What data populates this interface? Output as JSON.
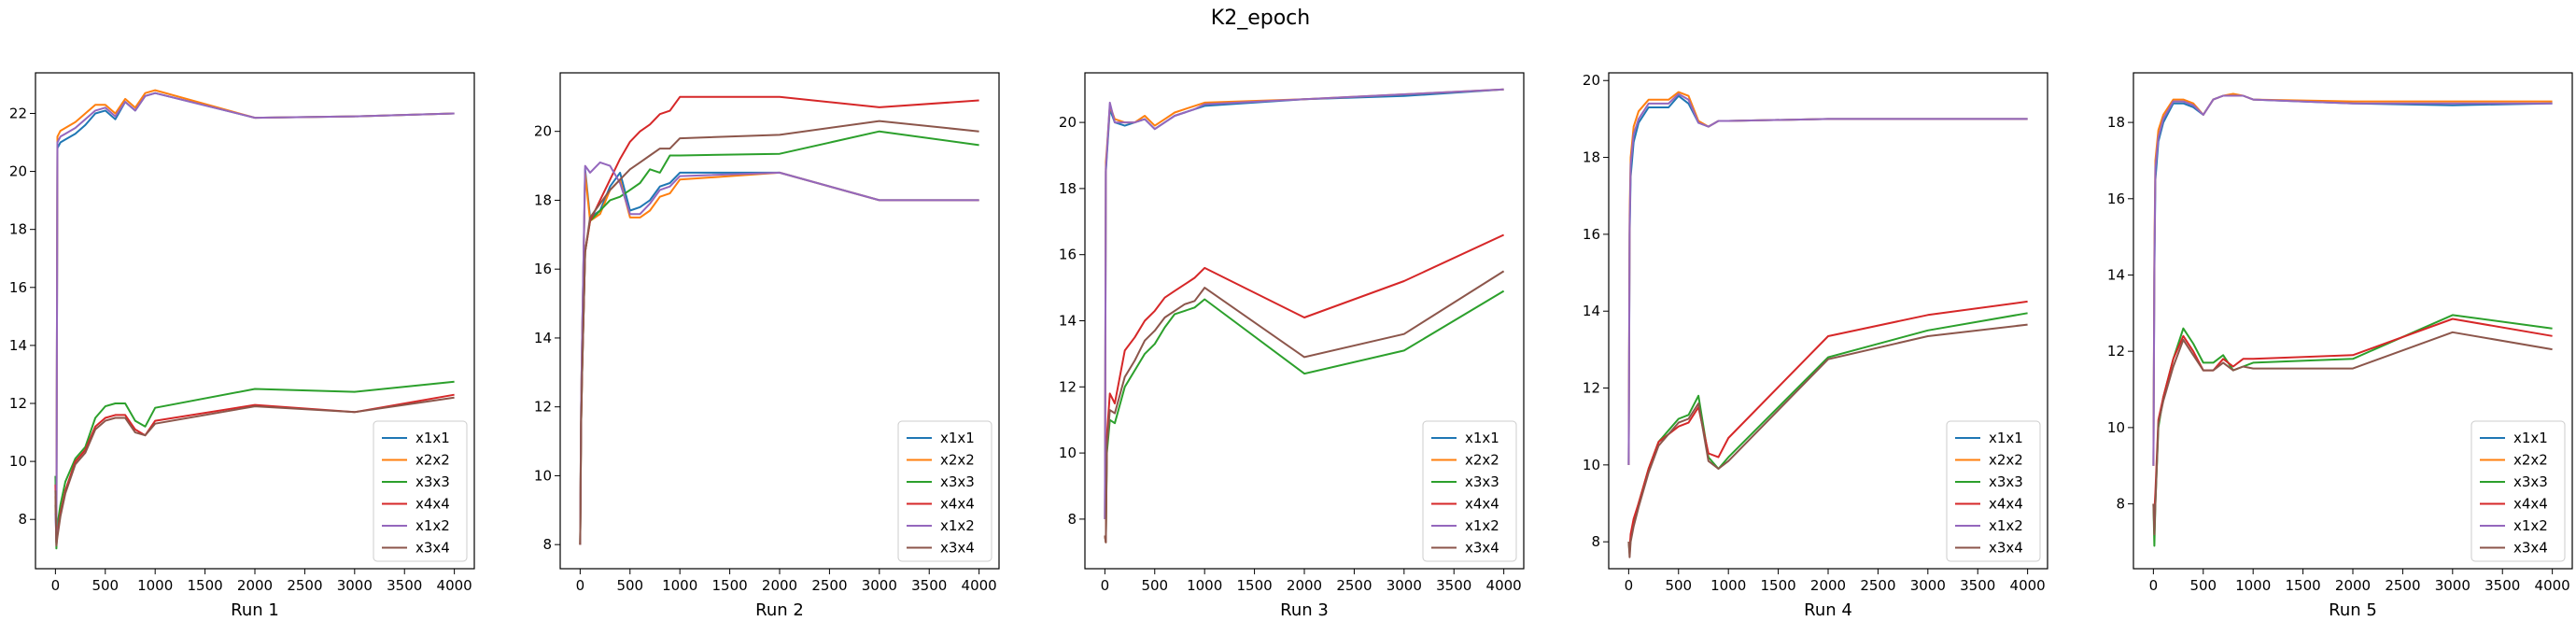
{
  "figure": {
    "title": "K2_epoch",
    "colors": {
      "x1x1": "#1f77b4",
      "x2x2": "#ff7f0e",
      "x3x3": "#2ca02c",
      "x4x4": "#d62728",
      "x1x2": "#9467bd",
      "x3x4": "#8c564b"
    }
  },
  "chart_data": [
    {
      "type": "line",
      "title": "",
      "xlabel": "Run 1",
      "ylabel": "",
      "xlim": [
        -200,
        4200
      ],
      "ylim": [
        6.3,
        23.4
      ],
      "xticks": [
        0,
        500,
        1000,
        1500,
        2000,
        2500,
        3000,
        3500,
        4000
      ],
      "yticks": [
        8,
        10,
        12,
        14,
        16,
        18,
        20,
        22
      ],
      "legend": "lower-right",
      "x": [
        0,
        10,
        20,
        50,
        100,
        200,
        300,
        400,
        500,
        600,
        700,
        800,
        900,
        1000,
        2000,
        3000,
        4000
      ],
      "series": [
        {
          "name": "x1x1",
          "values": [
            8.5,
            7.2,
            20.8,
            21.0,
            21.1,
            21.3,
            21.6,
            22.0,
            22.1,
            21.8,
            22.4,
            22.1,
            22.6,
            22.7,
            21.85,
            21.9,
            22.0
          ]
        },
        {
          "name": "x2x2",
          "values": [
            8.8,
            7.4,
            21.2,
            21.4,
            21.5,
            21.7,
            22.0,
            22.3,
            22.3,
            22.0,
            22.5,
            22.2,
            22.7,
            22.8,
            21.85,
            21.9,
            22.0
          ]
        },
        {
          "name": "x3x3",
          "values": [
            9.5,
            7.0,
            7.8,
            8.5,
            9.3,
            10.1,
            10.5,
            11.5,
            11.9,
            12.0,
            12.0,
            11.4,
            11.2,
            11.85,
            12.5,
            12.4,
            12.75
          ]
        },
        {
          "name": "x4x4",
          "values": [
            9.2,
            7.2,
            7.5,
            8.2,
            9.0,
            10.0,
            10.4,
            11.2,
            11.5,
            11.6,
            11.6,
            11.1,
            10.9,
            11.4,
            11.95,
            11.7,
            12.3
          ]
        },
        {
          "name": "x1x2",
          "values": [
            8.2,
            7.3,
            21.0,
            21.2,
            21.3,
            21.5,
            21.8,
            22.1,
            22.2,
            21.9,
            22.4,
            22.1,
            22.6,
            22.7,
            21.85,
            21.9,
            22.0
          ]
        },
        {
          "name": "x3x4",
          "values": [
            9.0,
            7.1,
            7.4,
            8.1,
            8.9,
            9.9,
            10.3,
            11.1,
            11.4,
            11.5,
            11.5,
            11.0,
            10.9,
            11.3,
            11.9,
            11.7,
            12.2
          ]
        }
      ]
    },
    {
      "type": "line",
      "title": "",
      "xlabel": "Run 2",
      "ylabel": "",
      "xlim": [
        -200,
        4200
      ],
      "ylim": [
        7.3,
        21.7
      ],
      "xticks": [
        0,
        500,
        1000,
        1500,
        2000,
        2500,
        3000,
        3500,
        4000
      ],
      "yticks": [
        8,
        10,
        12,
        14,
        16,
        18,
        20
      ],
      "legend": "lower-right",
      "x": [
        0,
        10,
        20,
        50,
        100,
        200,
        300,
        400,
        500,
        600,
        700,
        800,
        900,
        1000,
        2000,
        3000,
        4000
      ],
      "series": [
        {
          "name": "x1x1",
          "values": [
            8.0,
            12.0,
            14.0,
            18.9,
            17.5,
            17.7,
            18.4,
            18.8,
            17.7,
            17.8,
            18.0,
            18.4,
            18.5,
            18.8,
            18.8,
            18.0,
            18.0
          ]
        },
        {
          "name": "x2x2",
          "values": [
            8.0,
            12.0,
            14.0,
            18.8,
            17.4,
            17.6,
            18.3,
            18.6,
            17.5,
            17.5,
            17.7,
            18.1,
            18.2,
            18.6,
            18.8,
            18.0,
            18.0
          ]
        },
        {
          "name": "x3x3",
          "values": [
            8.0,
            11.5,
            13.0,
            16.5,
            17.4,
            17.7,
            18.0,
            18.1,
            18.3,
            18.5,
            18.9,
            18.8,
            19.3,
            19.3,
            19.35,
            20.0,
            19.6
          ]
        },
        {
          "name": "x4x4",
          "values": [
            8.0,
            11.5,
            13.0,
            16.5,
            17.4,
            18.0,
            18.6,
            19.2,
            19.7,
            20.0,
            20.2,
            20.5,
            20.6,
            21.0,
            21.0,
            20.7,
            20.9
          ]
        },
        {
          "name": "x1x2",
          "values": [
            8.0,
            12.0,
            14.0,
            19.0,
            18.8,
            19.1,
            19.0,
            18.5,
            17.6,
            17.6,
            17.9,
            18.3,
            18.4,
            18.7,
            18.8,
            18.0,
            18.0
          ]
        },
        {
          "name": "x3x4",
          "values": [
            8.0,
            11.5,
            13.0,
            16.5,
            17.5,
            17.9,
            18.3,
            18.6,
            18.9,
            19.1,
            19.3,
            19.5,
            19.5,
            19.8,
            19.9,
            20.3,
            20.0
          ]
        }
      ]
    },
    {
      "type": "line",
      "title": "",
      "xlabel": "Run 3",
      "ylabel": "",
      "xlim": [
        -200,
        4200
      ],
      "ylim": [
        6.5,
        21.5
      ],
      "xticks": [
        0,
        500,
        1000,
        1500,
        2000,
        2500,
        3000,
        3500,
        4000
      ],
      "yticks": [
        8,
        10,
        12,
        14,
        16,
        18,
        20
      ],
      "legend": "lower-right",
      "x": [
        0,
        10,
        20,
        50,
        100,
        200,
        300,
        400,
        500,
        600,
        700,
        800,
        900,
        1000,
        2000,
        3000,
        4000
      ],
      "series": [
        {
          "name": "x1x1",
          "values": [
            8.0,
            18.5,
            19.0,
            20.4,
            20.0,
            19.9,
            20.0,
            20.1,
            19.8,
            20.0,
            20.2,
            20.3,
            20.4,
            20.5,
            20.7,
            20.8,
            21.0
          ]
        },
        {
          "name": "x2x2",
          "values": [
            8.0,
            18.8,
            19.2,
            20.5,
            20.1,
            20.0,
            20.0,
            20.2,
            19.9,
            20.1,
            20.3,
            20.4,
            20.5,
            20.6,
            20.7,
            20.85,
            21.0
          ]
        },
        {
          "name": "x3x3",
          "values": [
            7.5,
            7.3,
            10.0,
            11.0,
            10.9,
            12.0,
            12.5,
            13.0,
            13.3,
            13.8,
            14.2,
            14.3,
            14.4,
            14.65,
            12.4,
            13.1,
            14.9
          ]
        },
        {
          "name": "x4x4",
          "values": [
            7.5,
            7.3,
            10.5,
            11.8,
            11.5,
            13.1,
            13.5,
            14.0,
            14.3,
            14.7,
            14.9,
            15.1,
            15.3,
            15.6,
            14.1,
            15.2,
            16.6
          ]
        },
        {
          "name": "x1x2",
          "values": [
            8.0,
            18.6,
            19.1,
            20.6,
            20.0,
            20.0,
            20.0,
            20.1,
            19.8,
            20.0,
            20.2,
            20.3,
            20.4,
            20.55,
            20.7,
            20.85,
            21.0
          ]
        },
        {
          "name": "x3x4",
          "values": [
            7.5,
            7.3,
            10.2,
            11.3,
            11.2,
            12.3,
            12.8,
            13.4,
            13.7,
            14.1,
            14.3,
            14.5,
            14.6,
            15.0,
            12.9,
            13.6,
            15.5
          ]
        }
      ]
    },
    {
      "type": "line",
      "title": "",
      "xlabel": "Run 4",
      "ylabel": "",
      "xlim": [
        -200,
        4200
      ],
      "ylim": [
        7.3,
        20.2
      ],
      "xticks": [
        0,
        500,
        1000,
        1500,
        2000,
        2500,
        3000,
        3500,
        4000
      ],
      "yticks": [
        8,
        10,
        12,
        14,
        16,
        18,
        20
      ],
      "legend": "lower-right",
      "x": [
        0,
        10,
        20,
        50,
        100,
        200,
        300,
        400,
        500,
        600,
        700,
        800,
        900,
        1000,
        2000,
        3000,
        4000
      ],
      "series": [
        {
          "name": "x1x1",
          "values": [
            10.0,
            16.0,
            17.5,
            18.4,
            18.9,
            19.3,
            19.3,
            19.3,
            19.6,
            19.4,
            18.9,
            18.8,
            18.95,
            18.95,
            19.0,
            19.0,
            19.0
          ]
        },
        {
          "name": "x2x2",
          "values": [
            10.0,
            16.5,
            18.0,
            18.8,
            19.2,
            19.5,
            19.5,
            19.5,
            19.7,
            19.6,
            18.95,
            18.8,
            18.95,
            18.95,
            19.0,
            19.0,
            19.0
          ]
        },
        {
          "name": "x3x3",
          "values": [
            8.0,
            7.7,
            8.1,
            8.5,
            9.0,
            9.9,
            10.6,
            10.9,
            11.2,
            11.3,
            11.8,
            10.2,
            9.9,
            10.2,
            12.8,
            13.5,
            13.95
          ]
        },
        {
          "name": "x4x4",
          "values": [
            8.0,
            7.8,
            8.2,
            8.6,
            9.0,
            9.9,
            10.6,
            10.8,
            11.0,
            11.1,
            11.5,
            10.3,
            10.2,
            10.7,
            13.35,
            13.9,
            14.25
          ]
        },
        {
          "name": "x1x2",
          "values": [
            10.0,
            16.2,
            17.8,
            18.6,
            19.0,
            19.4,
            19.4,
            19.4,
            19.65,
            19.5,
            18.9,
            18.8,
            18.95,
            18.95,
            19.0,
            19.0,
            19.0
          ]
        },
        {
          "name": "x3x4",
          "values": [
            8.0,
            7.6,
            8.0,
            8.4,
            8.9,
            9.8,
            10.5,
            10.8,
            11.1,
            11.2,
            11.6,
            10.1,
            9.9,
            10.1,
            12.75,
            13.35,
            13.65
          ]
        }
      ]
    },
    {
      "type": "line",
      "title": "",
      "xlabel": "Run 5",
      "ylabel": "",
      "xlim": [
        -200,
        4200
      ],
      "ylim": [
        6.3,
        19.3
      ],
      "xticks": [
        0,
        500,
        1000,
        1500,
        2000,
        2500,
        3000,
        3500,
        4000
      ],
      "yticks": [
        8,
        10,
        12,
        14,
        16,
        18
      ],
      "legend": "lower-right",
      "x": [
        0,
        10,
        20,
        50,
        100,
        200,
        300,
        400,
        500,
        600,
        700,
        800,
        900,
        1000,
        2000,
        3000,
        4000
      ],
      "series": [
        {
          "name": "x1x1",
          "values": [
            9.0,
            14.0,
            16.5,
            17.5,
            18.0,
            18.5,
            18.5,
            18.4,
            18.2,
            18.6,
            18.7,
            18.7,
            18.7,
            18.6,
            18.5,
            18.45,
            18.5
          ]
        },
        {
          "name": "x2x2",
          "values": [
            9.0,
            14.5,
            17.0,
            17.8,
            18.2,
            18.6,
            18.6,
            18.5,
            18.2,
            18.6,
            18.7,
            18.75,
            18.7,
            18.6,
            18.55,
            18.55,
            18.55
          ]
        },
        {
          "name": "x3x3",
          "values": [
            8.0,
            6.9,
            8.0,
            10.0,
            10.8,
            11.8,
            12.6,
            12.2,
            11.7,
            11.7,
            11.9,
            11.5,
            11.6,
            11.7,
            11.8,
            12.95,
            12.6
          ]
        },
        {
          "name": "x4x4",
          "values": [
            8.0,
            7.8,
            8.3,
            10.2,
            10.8,
            11.8,
            12.4,
            12.0,
            11.5,
            11.5,
            11.8,
            11.6,
            11.8,
            11.8,
            11.9,
            12.85,
            12.4
          ]
        },
        {
          "name": "x1x2",
          "values": [
            9.0,
            14.2,
            16.8,
            17.6,
            18.1,
            18.55,
            18.55,
            18.45,
            18.2,
            18.6,
            18.7,
            18.7,
            18.7,
            18.6,
            18.5,
            18.5,
            18.5
          ]
        },
        {
          "name": "x3x4",
          "values": [
            8.0,
            7.2,
            8.0,
            10.1,
            10.7,
            11.6,
            12.3,
            11.9,
            11.5,
            11.5,
            11.7,
            11.5,
            11.6,
            11.55,
            11.55,
            12.5,
            12.05
          ]
        }
      ]
    }
  ]
}
